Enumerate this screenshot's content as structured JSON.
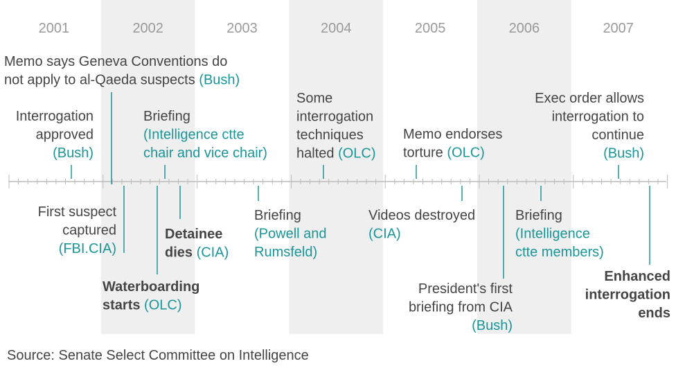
{
  "years": [
    "2001",
    "2002",
    "2003",
    "2004",
    "2005",
    "2006",
    "2007"
  ],
  "events": [
    {
      "lines": [
        [
          {
            "text": "Memo says Geneva Conventions do"
          }
        ],
        [
          {
            "text": "not apply to al-Qaeda suspects "
          },
          {
            "text": "(Bush)",
            "kind": "agency"
          }
        ]
      ]
    },
    {
      "lines": [
        [
          {
            "text": "Interrogation"
          }
        ],
        [
          {
            "text": "approved"
          }
        ],
        [
          {
            "text": "(Bush)",
            "kind": "agency"
          }
        ]
      ]
    },
    {
      "lines": [
        [
          {
            "text": "Briefing"
          }
        ],
        [
          {
            "text": "(Intelligence ctte",
            "kind": "agency"
          }
        ],
        [
          {
            "text": "chair and vice chair)",
            "kind": "agency"
          }
        ]
      ]
    },
    {
      "lines": [
        [
          {
            "text": "Some"
          }
        ],
        [
          {
            "text": "interrogation"
          }
        ],
        [
          {
            "text": "techniques"
          }
        ],
        [
          {
            "text": "halted "
          },
          {
            "text": "(OLC)",
            "kind": "agency"
          }
        ]
      ]
    },
    {
      "lines": [
        [
          {
            "text": "Memo endorses"
          }
        ],
        [
          {
            "text": "torture "
          },
          {
            "text": "(OLC)",
            "kind": "agency"
          }
        ]
      ]
    },
    {
      "lines": [
        [
          {
            "text": "Exec order allows"
          }
        ],
        [
          {
            "text": "interrogation to"
          }
        ],
        [
          {
            "text": "continue"
          }
        ],
        [
          {
            "text": "(Bush)",
            "kind": "agency"
          }
        ]
      ]
    },
    {
      "lines": [
        [
          {
            "text": "First suspect"
          }
        ],
        [
          {
            "text": "captured"
          }
        ],
        [
          {
            "text": "(FBI.CIA)",
            "kind": "agency"
          }
        ]
      ]
    },
    {
      "lines": [
        [
          {
            "text": "Waterboarding",
            "kind": "bold"
          }
        ],
        [
          {
            "text": "starts ",
            "kind": "bold"
          },
          {
            "text": "(OLC)",
            "kind": "agency"
          }
        ]
      ]
    },
    {
      "lines": [
        [
          {
            "text": "Detainee",
            "kind": "bold"
          }
        ],
        [
          {
            "text": "dies ",
            "kind": "bold"
          },
          {
            "text": "(CIA)",
            "kind": "agency"
          }
        ]
      ]
    },
    {
      "lines": [
        [
          {
            "text": "Briefing"
          }
        ],
        [
          {
            "text": "(Powell and",
            "kind": "agency"
          }
        ],
        [
          {
            "text": "Rumsfeld)",
            "kind": "agency"
          }
        ]
      ]
    },
    {
      "lines": [
        [
          {
            "text": "Videos destroyed"
          }
        ],
        [
          {
            "text": "(CIA)",
            "kind": "agency"
          }
        ]
      ]
    },
    {
      "lines": [
        [
          {
            "text": "President's first"
          }
        ],
        [
          {
            "text": "briefing from CIA"
          }
        ],
        [
          {
            "text": "(Bush)",
            "kind": "agency"
          }
        ]
      ]
    },
    {
      "lines": [
        [
          {
            "text": "Briefing"
          }
        ],
        [
          {
            "text": "(Intelligence",
            "kind": "agency"
          }
        ],
        [
          {
            "text": "ctte members)",
            "kind": "agency"
          }
        ]
      ]
    },
    {
      "lines": [
        [
          {
            "text": "Enhanced",
            "kind": "bold"
          }
        ],
        [
          {
            "text": "interrogation",
            "kind": "bold"
          }
        ],
        [
          {
            "text": "ends",
            "kind": "bold"
          }
        ]
      ]
    }
  ],
  "source": "Source: Senate Select Committee on Intelligence"
}
